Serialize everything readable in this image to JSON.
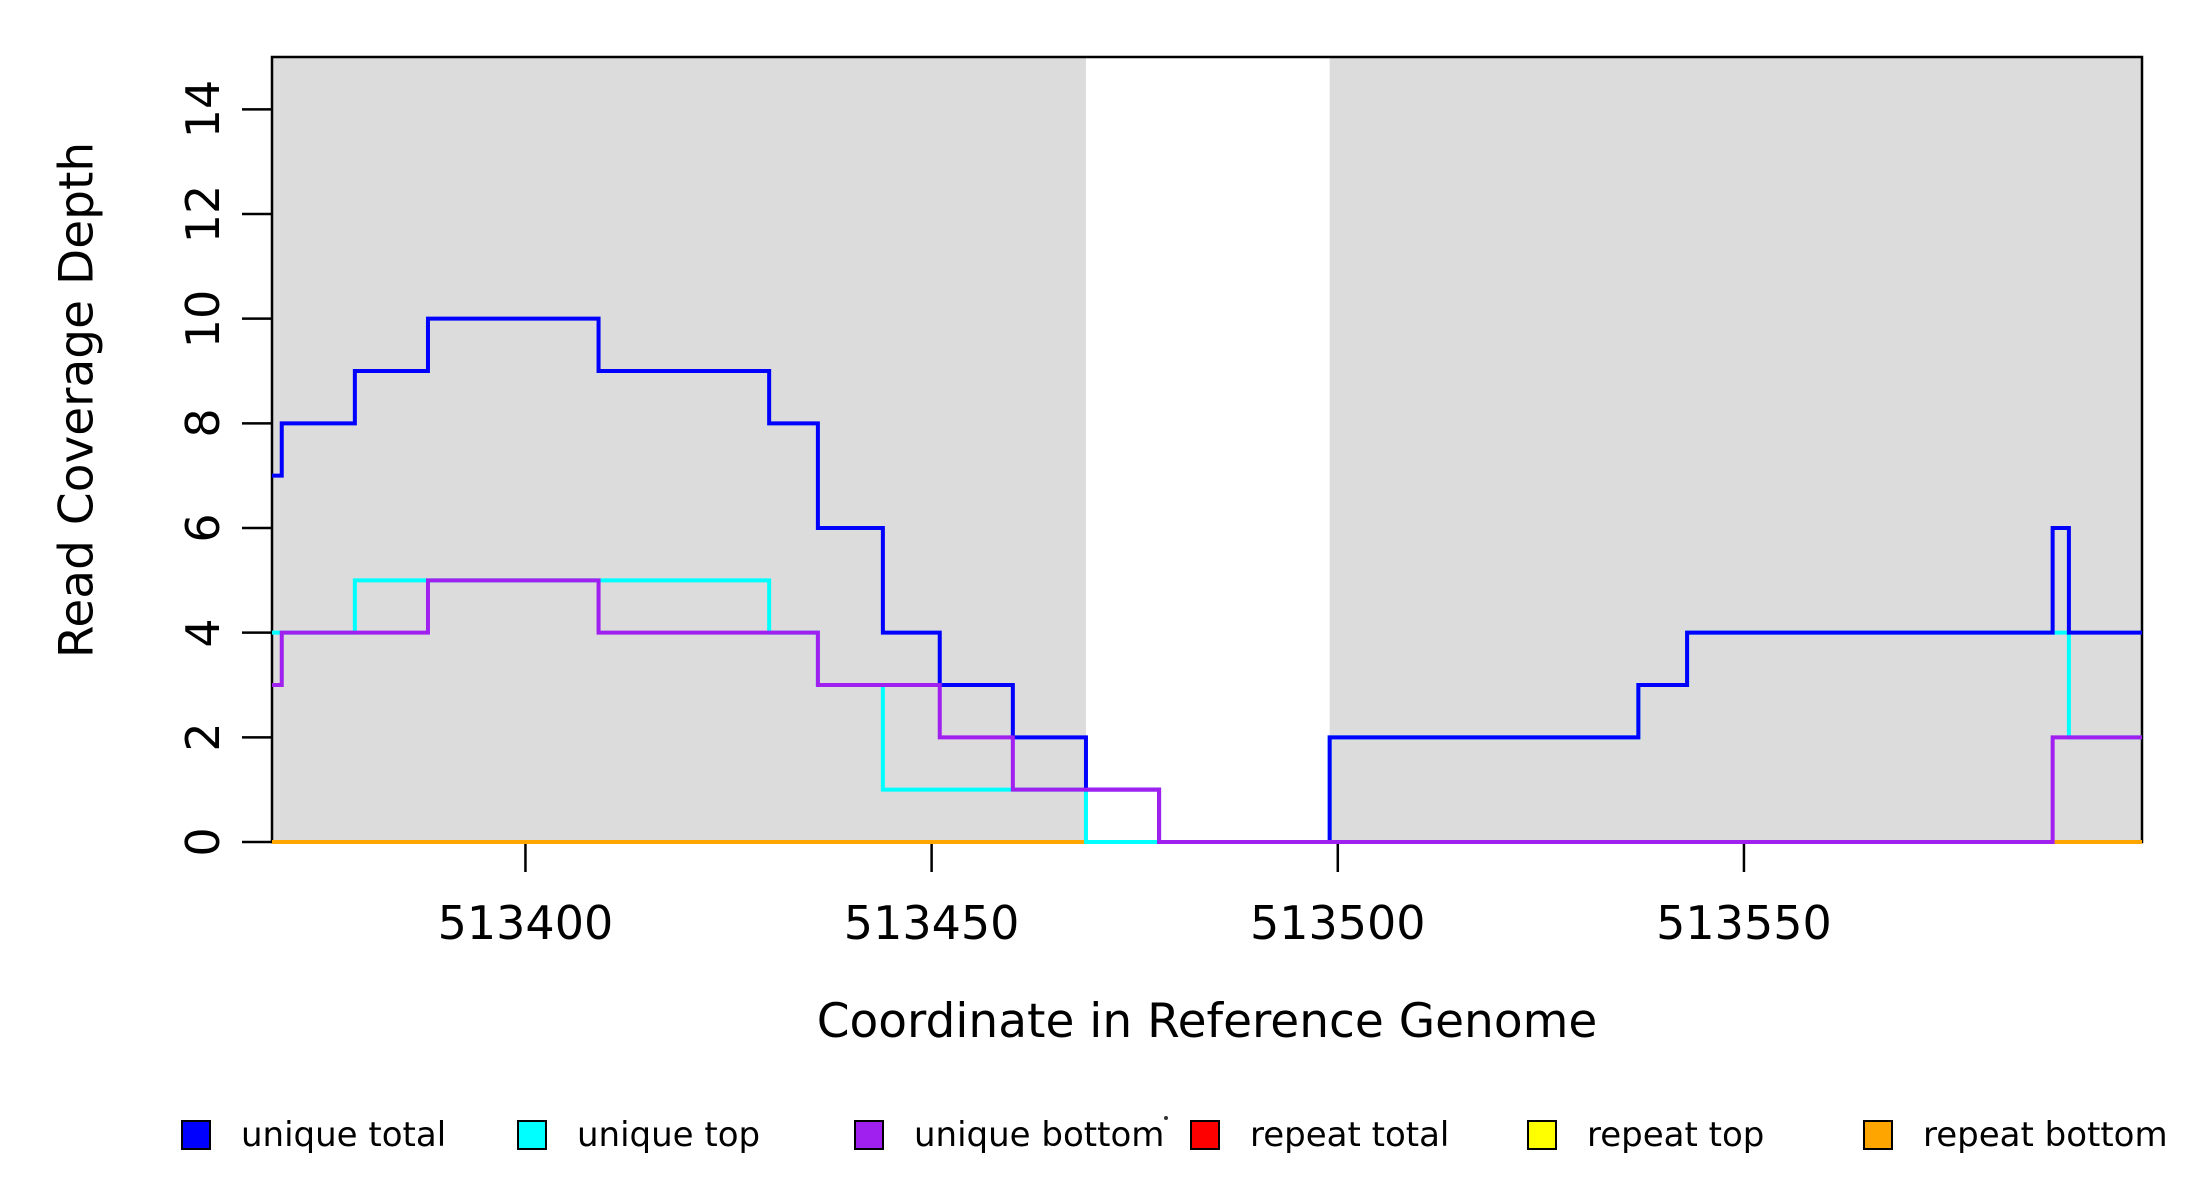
{
  "chart_data": {
    "type": "line",
    "subtype": "step",
    "title": "",
    "xlabel": "Coordinate in Reference Genome",
    "ylabel": "Read Coverage Depth",
    "xlim": [
      513368.8,
      513599
    ],
    "ylim": [
      0,
      15
    ],
    "x_ticks": [
      513400,
      513450,
      513500,
      513550
    ],
    "y_ticks": [
      0,
      2,
      4,
      6,
      8,
      10,
      12,
      14
    ],
    "grid": false,
    "legend_position": "bottom",
    "background_bands": [
      {
        "from": 513368.8,
        "to": 513469,
        "color": "#DCDCDC"
      },
      {
        "from": 513499,
        "to": 513599,
        "color": "#DCDCDC"
      }
    ],
    "series": [
      {
        "name": "unique total",
        "color": "#0000FF",
        "draw_order": 5,
        "end": 513599,
        "steps": [
          [
            513368.8,
            7
          ],
          [
            513370,
            8
          ],
          [
            513379,
            9
          ],
          [
            513388,
            10
          ],
          [
            513409,
            9
          ],
          [
            513430,
            8
          ],
          [
            513436,
            6
          ],
          [
            513444,
            4
          ],
          [
            513451,
            3
          ],
          [
            513460,
            2
          ],
          [
            513469,
            1
          ],
          [
            513478,
            0
          ],
          [
            513499,
            2
          ],
          [
            513537,
            3
          ],
          [
            513543,
            4
          ],
          [
            513588,
            6
          ],
          [
            513590,
            4
          ]
        ]
      },
      {
        "name": "unique top",
        "color": "#00FFFF",
        "draw_order": 4,
        "end": 513599,
        "steps": [
          [
            513368.8,
            4
          ],
          [
            513379,
            5
          ],
          [
            513430,
            4
          ],
          [
            513436,
            3
          ],
          [
            513444,
            1
          ],
          [
            513469,
            0
          ],
          [
            513499,
            2
          ],
          [
            513537,
            3
          ],
          [
            513543,
            4
          ],
          [
            513590,
            2
          ]
        ]
      },
      {
        "name": "unique bottom",
        "color": "#A020F0",
        "draw_order": 6,
        "end": 513599,
        "steps": [
          [
            513368.8,
            3
          ],
          [
            513370,
            4
          ],
          [
            513388,
            5
          ],
          [
            513409,
            4
          ],
          [
            513436,
            3
          ],
          [
            513451,
            2
          ],
          [
            513460,
            1
          ],
          [
            513478,
            0
          ],
          [
            513588,
            2
          ]
        ]
      },
      {
        "name": "repeat total",
        "color": "#FF0000",
        "draw_order": 1,
        "end": 513599,
        "steps": [
          [
            513368.8,
            0
          ]
        ]
      },
      {
        "name": "repeat top",
        "color": "#FFFF00",
        "draw_order": 2,
        "end": 513599,
        "steps": [
          [
            513368.8,
            0
          ]
        ]
      },
      {
        "name": "repeat bottom",
        "color": "#FFA500",
        "draw_order": 3,
        "end": 513599,
        "steps": [
          [
            513368.8,
            0
          ]
        ]
      }
    ],
    "legend": [
      {
        "label": "unique total",
        "color": "#0000FF"
      },
      {
        "label": "unique top",
        "color": "#00FFFF"
      },
      {
        "label": "unique bottom",
        "color": "#A020F0"
      },
      {
        "label": "repeat total",
        "color": "#FF0000"
      },
      {
        "label": "repeat top",
        "color": "#FFFF00"
      },
      {
        "label": "repeat bottom",
        "color": "#FFA500"
      }
    ]
  }
}
